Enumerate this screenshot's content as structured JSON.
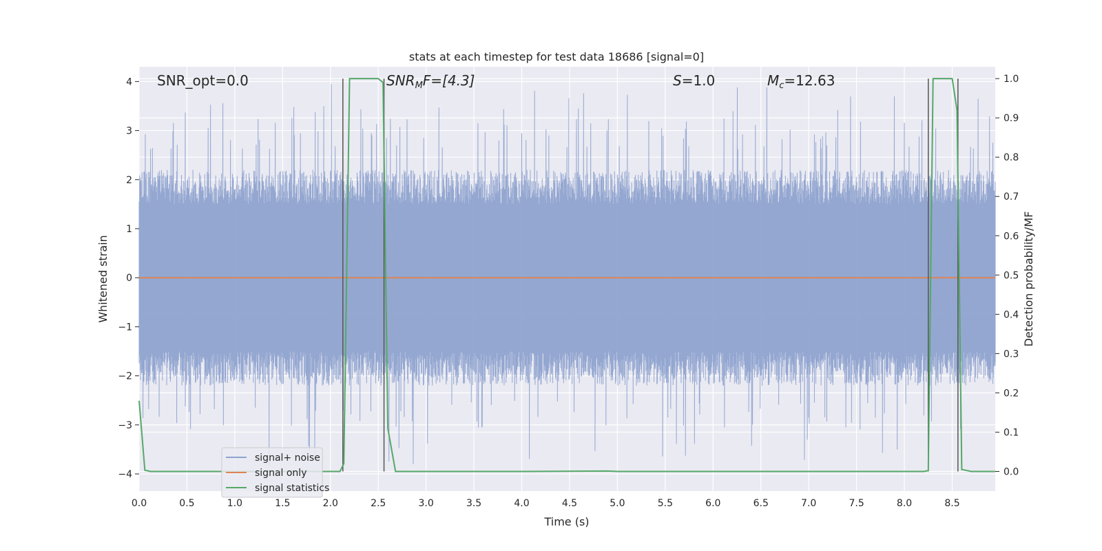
{
  "chart_data": {
    "type": "line",
    "title": "stats at each timestep for test data 18686 [signal=0]",
    "xlabel": "Time (s)",
    "ylabel_left": "Whitened strain",
    "ylabel_right": "Detection probability/MF",
    "xlim": [
      0.0,
      8.95
    ],
    "ylim_left": [
      -4.35,
      4.3
    ],
    "ylim_right": [
      -0.05,
      1.03
    ],
    "x_ticks": [
      "0.0",
      "0.5",
      "1.0",
      "1.5",
      "2.0",
      "2.5",
      "3.0",
      "3.5",
      "4.0",
      "4.5",
      "5.0",
      "5.5",
      "6.0",
      "6.5",
      "7.0",
      "7.5",
      "8.0",
      "8.5"
    ],
    "y_ticks_left": [
      "4",
      "3",
      "2",
      "1",
      "0",
      "−1",
      "−2",
      "−3",
      "−4"
    ],
    "y_ticks_right": [
      "1.0",
      "0.9",
      "0.8",
      "0.7",
      "0.6",
      "0.5",
      "0.4",
      "0.3",
      "0.2",
      "0.1",
      "0.0"
    ],
    "grid": true,
    "legend_position": "lower-left",
    "annotations": {
      "snr_opt": "SNR_opt=0.0",
      "snr_mf_italic": "SNR",
      "snr_mf_sub": "M",
      "snr_mf_rest": "F=[4.3]",
      "s_italic": "S",
      "s_rest": "=1.0",
      "mc_italic": "M",
      "mc_sub": "c",
      "mc_rest": "=12.63"
    },
    "series": [
      {
        "name": "signal+ noise",
        "color": "#8fa3cf",
        "description_envelope": {
          "upper_typical": 2.0,
          "lower_typical": -2.0,
          "max_spike": 3.95,
          "min_spike": -3.85
        }
      },
      {
        "name": "signal only",
        "color": "#dd8452",
        "x": [
          0.0,
          8.95
        ],
        "y": [
          0.0,
          0.0
        ]
      },
      {
        "name": "signal statistics",
        "color": "#55a868",
        "axis": "right",
        "x": [
          0.0,
          0.06,
          0.12,
          0.5,
          1.0,
          1.5,
          2.0,
          2.1,
          2.14,
          2.2,
          2.3,
          2.5,
          2.55,
          2.6,
          2.68,
          3.0,
          4.0,
          4.9,
          5.0,
          6.0,
          7.0,
          8.0,
          8.2,
          8.25,
          8.3,
          8.4,
          8.5,
          8.55,
          8.6,
          8.7,
          8.95
        ],
        "y": [
          0.18,
          0.003,
          0.0,
          0.0,
          0.0,
          0.0,
          0.0,
          0.0,
          0.02,
          1.0,
          1.0,
          1.0,
          0.99,
          0.11,
          0.0,
          0.0,
          0.0,
          0.001,
          0.0,
          0.0,
          0.0,
          0.0,
          0.0,
          0.002,
          1.0,
          1.0,
          1.0,
          0.92,
          0.005,
          0.0,
          0.0
        ]
      }
    ],
    "vertical_markers": [
      2.13,
      2.56,
      8.25,
      8.56
    ]
  }
}
